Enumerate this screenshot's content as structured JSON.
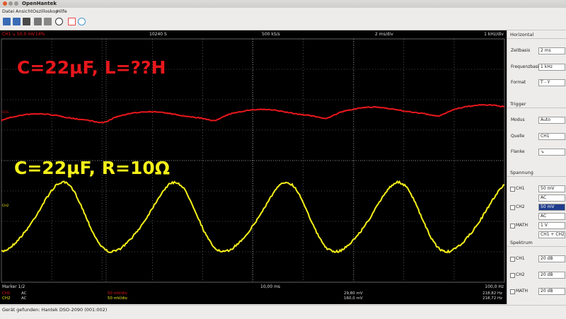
{
  "window": {
    "title": "OpenHantek"
  },
  "menu": [
    "Datei",
    "Ansicht",
    "Oszilloskop",
    "Hilfe"
  ],
  "scope": {
    "header": {
      "channel": "CH1",
      "trigger": "↘ 50.0 mV",
      "pretrigger": "14%",
      "samples": "10240 S",
      "samplerate": "500 kS/s",
      "timebase": "2 ms/div",
      "freqbase": "1 kHz/div"
    },
    "annotations": [
      "C=22µF, L=??H",
      "C=22µF, R=10Ω"
    ],
    "channel_markers": [
      "CH1",
      "CH2"
    ],
    "marker": {
      "label": "Marker 1/2",
      "time": "10,00 ms",
      "frequency": "100,0 Hz"
    },
    "measurements": [
      [
        "CH1",
        "AC",
        "50 mV/div",
        "29,80 mV",
        "218,82 Hz"
      ],
      [
        "CH2",
        "AC",
        "50 mV/div",
        "160,0 mV",
        "218,72 Hz"
      ]
    ]
  },
  "docks": {
    "horizontal": {
      "title": "Horizontal",
      "rows": [
        [
          "Zeitbasis",
          "2 ms"
        ],
        [
          "Frequenzbasis",
          "1 kHz"
        ],
        [
          "Format",
          "T - Y"
        ]
      ]
    },
    "trigger": {
      "title": "Trigger",
      "rows": [
        [
          "Modus",
          "Auto"
        ],
        [
          "Quelle",
          "CH1"
        ],
        [
          "Flanke",
          "↘"
        ]
      ]
    },
    "voltage": {
      "title": "Spannung",
      "rows": [
        [
          "CH1",
          "50 mV",
          "AC"
        ],
        [
          "CH2",
          "50 mV",
          "AC"
        ],
        [
          "MATH",
          "1 V",
          "CH1 + CH2"
        ]
      ]
    },
    "spectrum": {
      "title": "Spektrum",
      "rows": [
        [
          "CH1",
          "20 dB"
        ],
        [
          "CH2",
          "20 dB"
        ],
        [
          "MATH",
          "20 dB"
        ]
      ]
    }
  },
  "status": "Gerät gefunden: Hantek DSO-2090 (001:002)"
}
